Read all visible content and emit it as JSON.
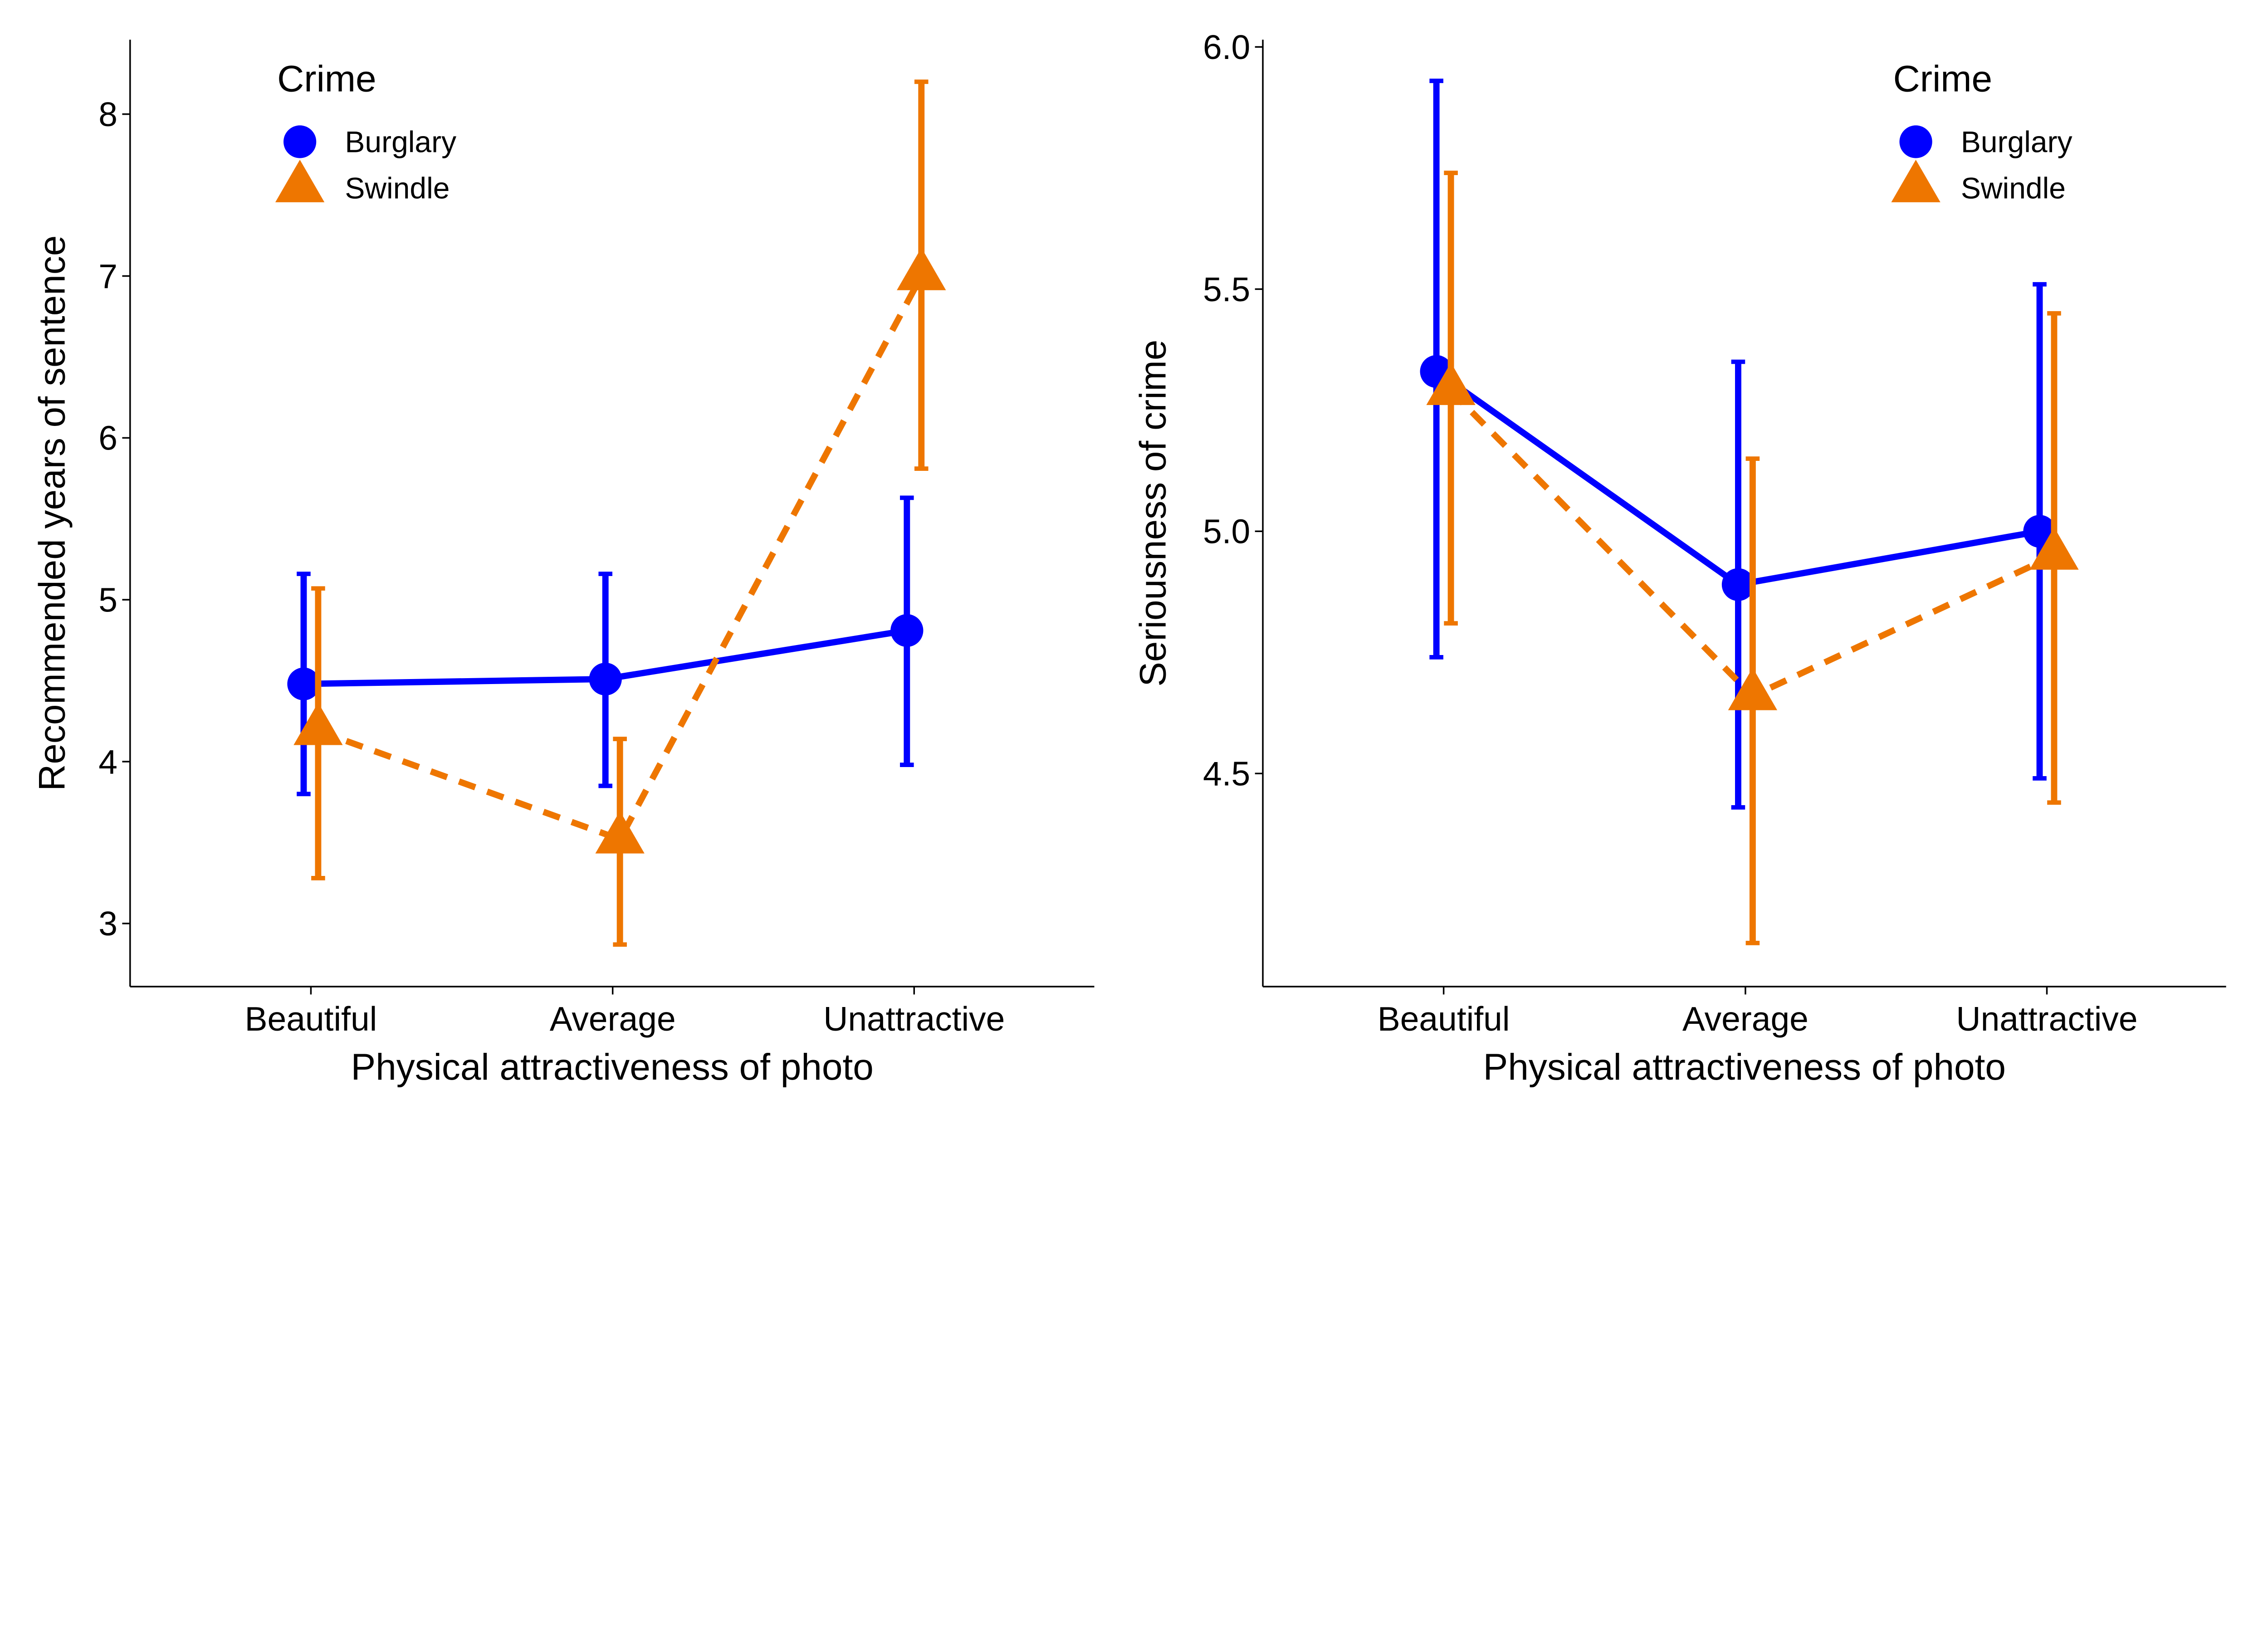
{
  "colors": {
    "Burglary": "#0000FF",
    "Swindle": "#EE7600",
    "axis": "#000000"
  },
  "chart_data": [
    {
      "type": "line",
      "error_bars": true,
      "xlabel": "Physical attractiveness of photo",
      "ylabel": "Recommended years of sentence",
      "categories": [
        "Beautiful",
        "Average",
        "Unattractive"
      ],
      "ylim": [
        2.61,
        8.46
      ],
      "yticks": [
        3,
        4,
        5,
        6,
        7,
        8
      ],
      "grid": false,
      "legend": {
        "title": "Crime",
        "placement": "top-left",
        "entries": [
          "Burglary",
          "Swindle"
        ]
      },
      "series": [
        {
          "name": "Burglary",
          "marker": "circle",
          "line": "solid",
          "values": [
            4.48,
            4.51,
            4.81
          ],
          "lower": [
            3.8,
            3.85,
            3.98
          ],
          "upper": [
            5.16,
            5.16,
            5.63
          ]
        },
        {
          "name": "Swindle",
          "marker": "triangle",
          "line": "dashed",
          "values": [
            4.19,
            3.52,
            7.0
          ],
          "lower": [
            3.28,
            2.87,
            5.81
          ],
          "upper": [
            5.07,
            4.14,
            8.2
          ]
        }
      ]
    },
    {
      "type": "line",
      "error_bars": true,
      "xlabel": "Physical attractiveness of photo",
      "ylabel": "Seriousness of crime",
      "categories": [
        "Beautiful",
        "Average",
        "Unattractive"
      ],
      "ylim": [
        4.06,
        6.015
      ],
      "yticks": [
        "4.5",
        "5.0",
        "5.5",
        "6.0"
      ],
      "grid": false,
      "legend": {
        "title": "Crime",
        "placement": "top-right",
        "entries": [
          "Burglary",
          "Swindle"
        ]
      },
      "series": [
        {
          "name": "Burglary",
          "marker": "circle",
          "line": "solid",
          "values": [
            5.33,
            4.89,
            5.0
          ],
          "lower": [
            4.74,
            4.43,
            4.49
          ],
          "upper": [
            5.93,
            5.35,
            5.51
          ]
        },
        {
          "name": "Swindle",
          "marker": "triangle",
          "line": "dashed",
          "values": [
            5.29,
            4.66,
            4.95
          ],
          "lower": [
            4.81,
            4.15,
            4.44
          ],
          "upper": [
            5.74,
            5.15,
            5.45
          ]
        }
      ]
    }
  ]
}
